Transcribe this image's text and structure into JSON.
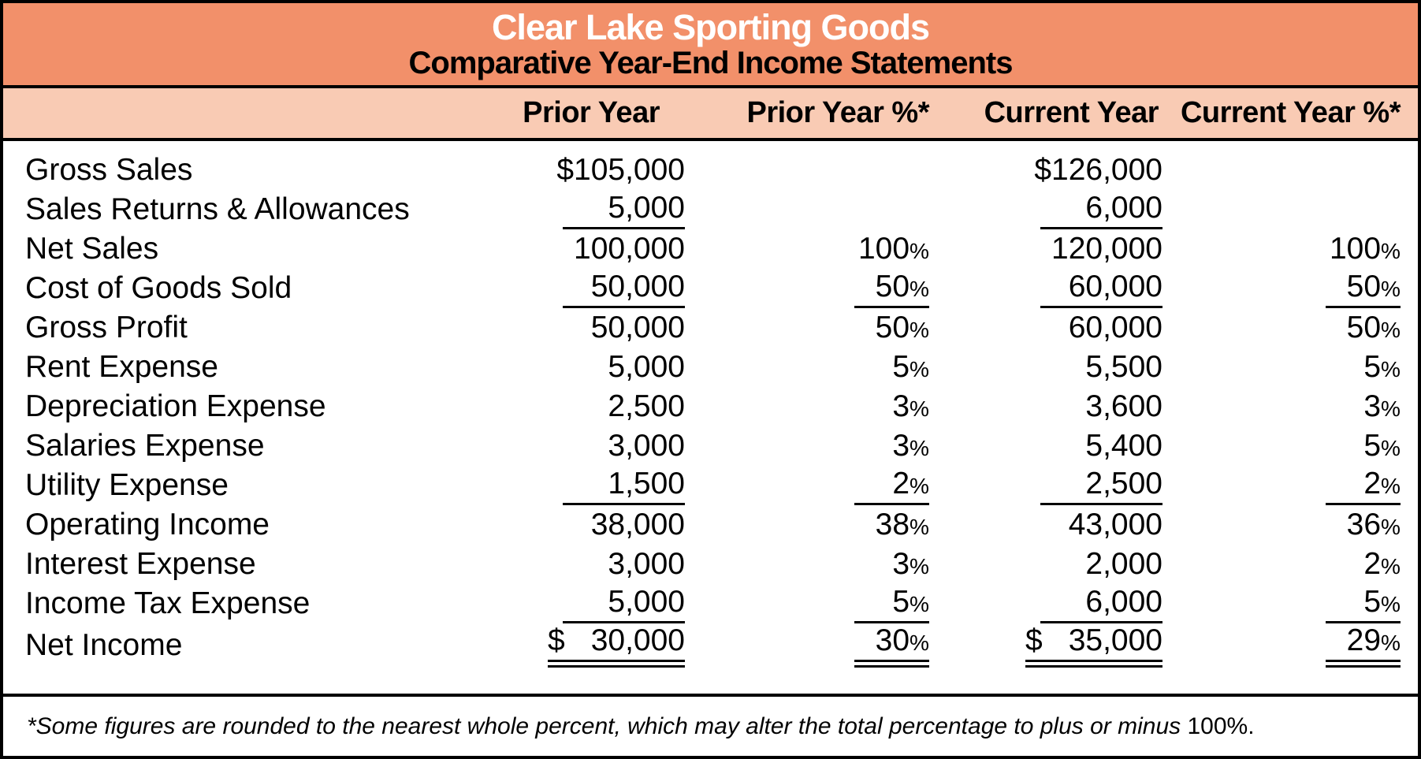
{
  "header": {
    "company": "Clear Lake Sporting Goods",
    "subtitle": "Comparative Year-End Income Statements"
  },
  "theme": {
    "banner_color": "#F2906A",
    "column_header_color": "#F9CBB4",
    "title_text_color": "#ffffff",
    "body_text_color": "#000000"
  },
  "columns": {
    "prior_year": "Prior Year",
    "prior_year_pct": "Prior Year %*",
    "current_year": "Current Year",
    "current_year_pct": "Current Year %*"
  },
  "rows": [
    {
      "label": "Gross Sales",
      "py": "$105,000",
      "pypct": "",
      "cy": "$126,000",
      "cypct": ""
    },
    {
      "label": "Sales Returns & Allowances",
      "py": "5,000",
      "pypct": "",
      "cy": "6,000",
      "cypct": ""
    },
    {
      "label": "Net Sales",
      "py": "100,000",
      "pypct": "100%",
      "cy": "120,000",
      "cypct": "100%"
    },
    {
      "label": "Cost of Goods Sold",
      "py": "50,000",
      "pypct": "50%",
      "cy": "60,000",
      "cypct": "50%"
    },
    {
      "label": "Gross Profit",
      "py": "50,000",
      "pypct": "50%",
      "cy": "60,000",
      "cypct": "50%"
    },
    {
      "label": "Rent Expense",
      "py": "5,000",
      "pypct": "5%",
      "cy": "5,500",
      "cypct": "5%"
    },
    {
      "label": "Depreciation Expense",
      "py": "2,500",
      "pypct": "3%",
      "cy": "3,600",
      "cypct": "3%"
    },
    {
      "label": "Salaries Expense",
      "py": "3,000",
      "pypct": "3%",
      "cy": "5,400",
      "cypct": "5%"
    },
    {
      "label": "Utility Expense",
      "py": "1,500",
      "pypct": "2%",
      "cy": "2,500",
      "cypct": "2%"
    },
    {
      "label": "Operating Income",
      "py": "38,000",
      "pypct": "38%",
      "cy": "43,000",
      "cypct": "36%"
    },
    {
      "label": "Interest Expense",
      "py": "3,000",
      "pypct": "3%",
      "cy": "2,000",
      "cypct": "2%"
    },
    {
      "label": "Income Tax Expense",
      "py": "5,000",
      "pypct": "5%",
      "cy": "6,000",
      "cypct": "5%"
    },
    {
      "label": "Net Income",
      "py_cur": "$",
      "py_num": "30,000",
      "pypct": "30%",
      "cy_cur": "$",
      "cy_num": "35,000",
      "cypct": "29%"
    }
  ],
  "footnote": {
    "italic_text": "*Some figures are rounded to the nearest whole percent, which may alter the total percentage to plus or minus ",
    "regular_text": "100%."
  }
}
